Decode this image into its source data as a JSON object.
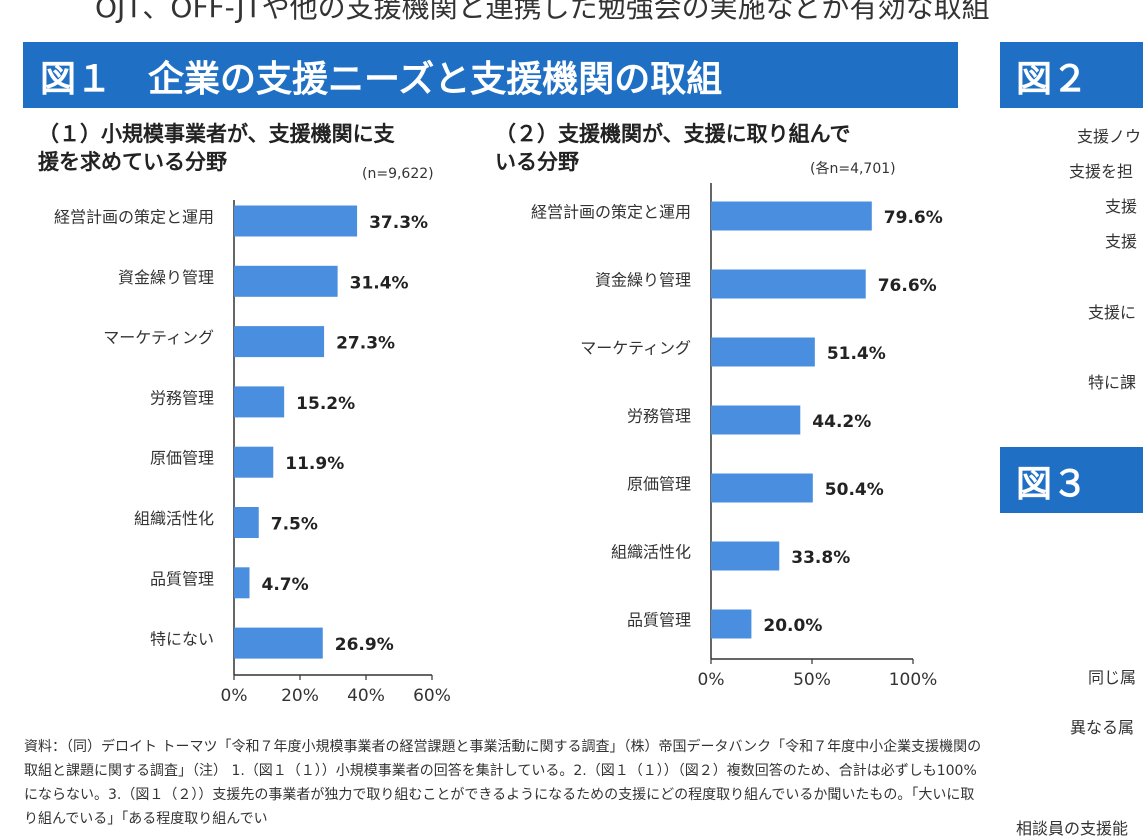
{
  "top_text": "OJT、OFF-JTや他の支援機関と連携した勉強会の実施などが有効な取組",
  "figure1_title": "図１　企業の支援ニーズと支援機関の取組",
  "figure2_title": "図２",
  "figure3_title": "図３",
  "right_labels": [
    "支援ノウ",
    "支援を担",
    "支援",
    "支援",
    "支援に",
    "特に課",
    "同じ属",
    "異なる属",
    "相談員の支援能"
  ],
  "footnote": "資料：（同）デロイト トーマツ「令和７年度小規模事業者の経営課題と事業活動に関する調査」（株）帝国データバンク「令和７年度中小企業支援機関の取組と課題に関する調査」（注） 1.（図１（１））小規模事業者の回答を集計している。2.（図１（１））（図２）複数回答のため、合計は必ずしも100%にならない。3.（図１（２））支援先の事業者が独力で取り組むことができるようになるための支援にどの程度取り組んでいるか聞いたもの。「大いに取り組んでいる」「ある程度取り組んでい",
  "colors": {
    "bar": "#4a8ee0",
    "banner": "#1f6fc4"
  },
  "chart_data": [
    {
      "type": "bar",
      "orientation": "horizontal",
      "title": "（１）小規模事業者が、支援機関に支援を求めている分野",
      "title_lines": [
        "（１）小規模事業者が、支援機関に支",
        "援を求めている分野"
      ],
      "note": "(n=9,622)",
      "categories": [
        "経営計画の策定と運用",
        "資金繰り管理",
        "マーケティング",
        "労務管理",
        "原価管理",
        "組織活性化",
        "品質管理",
        "特にない"
      ],
      "values": [
        37.3,
        31.4,
        27.3,
        15.2,
        11.9,
        7.5,
        4.7,
        26.9
      ],
      "value_labels": [
        "37.3%",
        "31.4%",
        "27.3%",
        "15.2%",
        "11.9%",
        "7.5%",
        "4.7%",
        "26.9%"
      ],
      "xlim": [
        0,
        60
      ],
      "xticks": [
        "0%",
        "20%",
        "40%",
        "60%"
      ]
    },
    {
      "type": "bar",
      "orientation": "horizontal",
      "title": "（２）支援機関が、支援に取り組んでいる分野",
      "title_lines": [
        "（２）支援機関が、支援に取り組んで",
        "いる分野"
      ],
      "note": "(各n=4,701)",
      "categories": [
        "経営計画の策定と運用",
        "資金繰り管理",
        "マーケティング",
        "労務管理",
        "原価管理",
        "組織活性化",
        "品質管理"
      ],
      "values": [
        79.6,
        76.6,
        51.4,
        44.2,
        50.4,
        33.8,
        20.0
      ],
      "value_labels": [
        "79.6%",
        "76.6%",
        "51.4%",
        "44.2%",
        "50.4%",
        "33.8%",
        "20.0%"
      ],
      "xlim": [
        0,
        100
      ],
      "xticks": [
        "0%",
        "50%",
        "100%"
      ]
    }
  ]
}
